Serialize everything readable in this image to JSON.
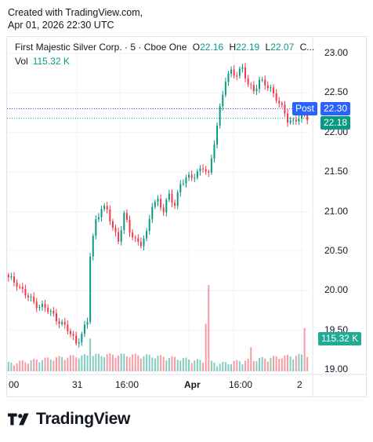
{
  "header": {
    "created_line": "Created with TradingView.com,",
    "date_line": "Apr 01, 2026 22:30 UTC"
  },
  "legend": {
    "symbol": "First Majestic Silver Corp. · 5 · Cboe One",
    "o_label": "O",
    "o_value": "22.16",
    "h_label": "H",
    "h_value": "22.19",
    "l_label": "L",
    "l_value": "22.07",
    "c_label": "C...",
    "vol_label": "Vol",
    "vol_value": "115.32 K"
  },
  "price_tags": {
    "post_label": "Post",
    "post_value": "22.30",
    "last_value": "22.18",
    "volume_value": "115.32 K"
  },
  "brand": "TradingView",
  "colors": {
    "up": "#089981",
    "down": "#f23645",
    "post": "#2962ff",
    "grid": "#f0f3fa"
  },
  "chart_data": {
    "type": "candlestick",
    "price_ticks": [
      "23.00",
      "22.50",
      "22.00",
      "21.50",
      "21.00",
      "20.50",
      "20.00",
      "19.50",
      "19.00"
    ],
    "price_tick_values": [
      23.0,
      22.5,
      22.0,
      21.5,
      21.0,
      20.5,
      20.0,
      19.5,
      19.0
    ],
    "ylim": [
      18.96,
      23.07
    ],
    "x_ticks": [
      {
        "label": "00",
        "bold": false
      },
      {
        "label": "31",
        "bold": false
      },
      {
        "label": "16:00",
        "bold": false
      },
      {
        "label": "Apr",
        "bold": true
      },
      {
        "label": "16:00",
        "bold": false
      },
      {
        "label": "2",
        "bold": false
      }
    ],
    "post_line": 22.3,
    "last_line": 22.18,
    "anchors": [
      [
        0,
        20.15
      ],
      [
        3,
        20.1
      ],
      [
        6,
        19.95
      ],
      [
        9,
        19.85
      ],
      [
        12,
        19.8
      ],
      [
        15,
        19.72
      ],
      [
        18,
        19.62
      ],
      [
        21,
        19.5
      ],
      [
        24,
        19.35
      ],
      [
        26,
        19.45
      ],
      [
        28,
        19.6
      ],
      [
        29,
        20.45
      ],
      [
        31,
        20.9
      ],
      [
        33,
        21.05
      ],
      [
        35,
        21.0
      ],
      [
        37,
        20.8
      ],
      [
        39,
        20.65
      ],
      [
        41,
        20.95
      ],
      [
        43,
        20.75
      ],
      [
        45,
        20.65
      ],
      [
        47,
        20.6
      ],
      [
        49,
        20.7
      ],
      [
        51,
        21.1
      ],
      [
        53,
        21.15
      ],
      [
        55,
        21.0
      ],
      [
        57,
        21.2
      ],
      [
        59,
        21.1
      ],
      [
        61,
        21.35
      ],
      [
        63,
        21.4
      ],
      [
        65,
        21.45
      ],
      [
        67,
        21.5
      ],
      [
        69,
        21.55
      ],
      [
        71,
        21.45
      ],
      [
        73,
        21.9
      ],
      [
        75,
        22.3
      ],
      [
        77,
        22.65
      ],
      [
        79,
        22.78
      ],
      [
        81,
        22.75
      ],
      [
        83,
        22.8
      ],
      [
        85,
        22.6
      ],
      [
        87,
        22.55
      ],
      [
        89,
        22.65
      ],
      [
        91,
        22.6
      ],
      [
        93,
        22.55
      ],
      [
        95,
        22.45
      ],
      [
        97,
        22.3
      ],
      [
        99,
        22.15
      ],
      [
        101,
        22.15
      ],
      [
        103,
        22.2
      ],
      [
        105,
        22.18
      ],
      [
        106,
        22.18
      ]
    ],
    "volume_spikes": [
      {
        "index": 71,
        "value": 1.0
      },
      {
        "index": 70,
        "value": 0.55
      },
      {
        "index": 105,
        "value": 0.5
      },
      {
        "index": 29,
        "value": 0.38
      },
      {
        "index": 86,
        "value": 0.28
      }
    ]
  }
}
